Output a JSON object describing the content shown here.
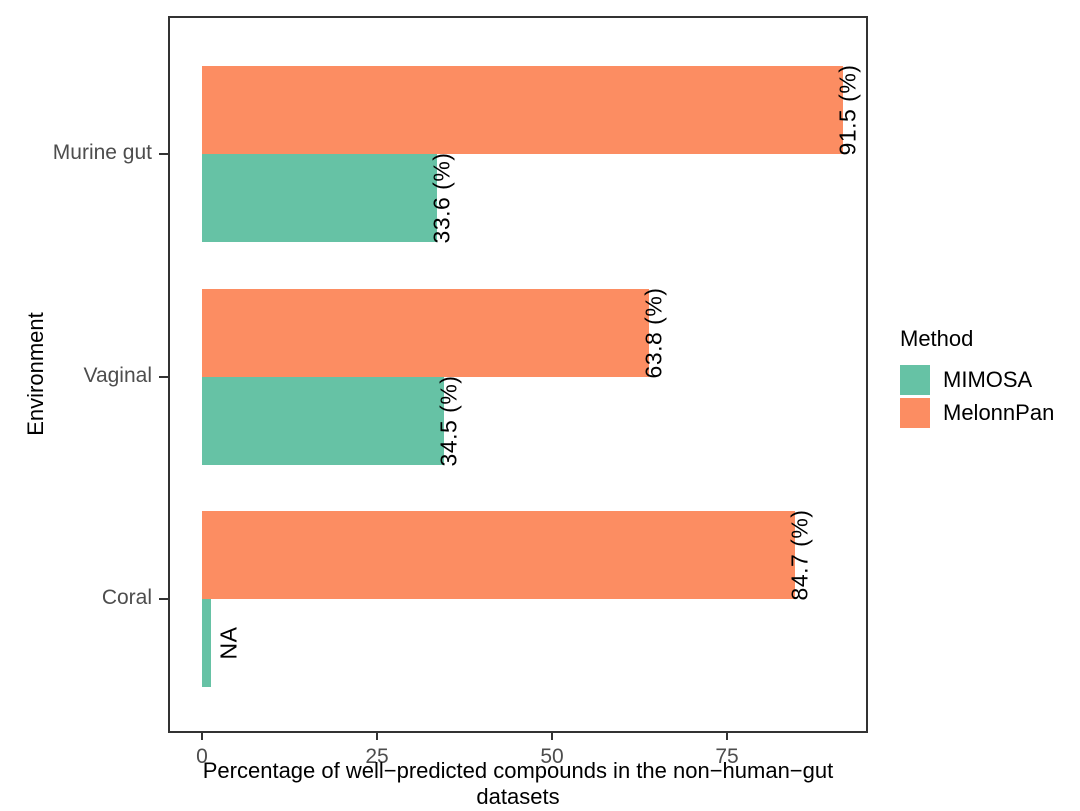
{
  "chart_data": {
    "type": "bar",
    "orientation": "horizontal",
    "title": "",
    "xlabel": "Percentage of well−predicted compounds in the non−human−gut datasets",
    "ylabel": "Environment",
    "categories": [
      "Murine gut",
      "Vaginal",
      "Coral"
    ],
    "series": [
      {
        "name": "MelonnPan",
        "color": "#FC8D62",
        "values": [
          91.5,
          63.8,
          84.7
        ],
        "labels": [
          "91.5 (%)",
          "63.8 (%)",
          "84.7 (%)"
        ]
      },
      {
        "name": "MIMOSA",
        "color": "#66C2A5",
        "values": [
          33.6,
          34.5,
          null
        ],
        "labels": [
          "33.6 (%)",
          "34.5 (%)",
          "NA"
        ]
      }
    ],
    "x_ticks": [
      0,
      25,
      50,
      75
    ],
    "xlim": [
      -4.6,
      96.1
    ],
    "grid": false,
    "panel_border": true,
    "legend_position": "right",
    "legend_title": "Method",
    "legend_order": [
      "MIMOSA",
      "MelonnPan"
    ],
    "bar_label_rotation_deg": 90,
    "axis_text_color": "#4d4d4d",
    "axis_title_color": "#000000",
    "panel_border_color": "#333333"
  }
}
